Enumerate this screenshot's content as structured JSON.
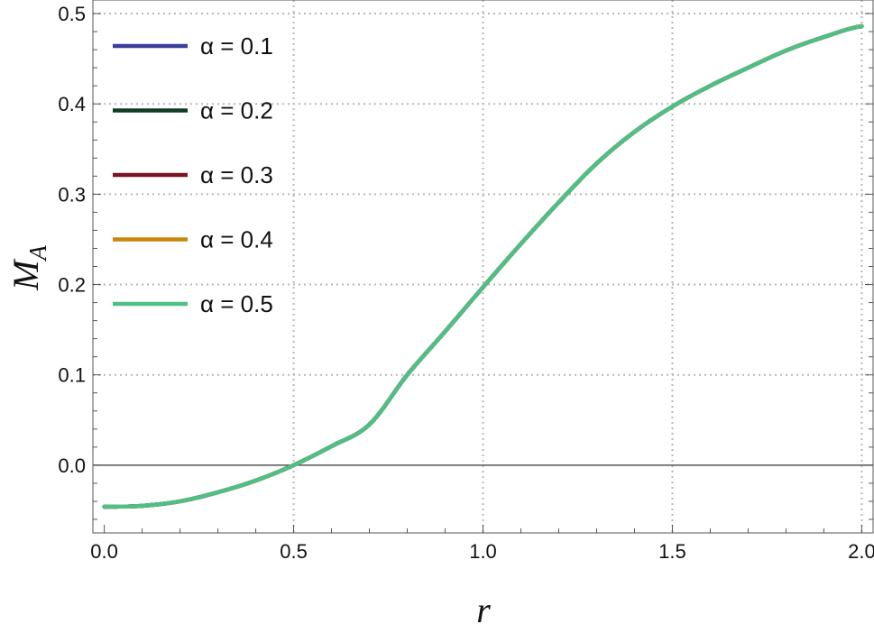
{
  "chart_data": {
    "type": "line",
    "title": "",
    "xlabel": "r",
    "ylabel_main": "M",
    "ylabel_sub": "A",
    "xlim": [
      -0.03,
      2.03
    ],
    "ylim": [
      -0.075,
      0.515
    ],
    "x_ticks": [
      0.0,
      0.5,
      1.0,
      1.5,
      2.0
    ],
    "x_tick_labels": [
      "0.0",
      "0.5",
      "1.0",
      "1.5",
      "2.0"
    ],
    "y_ticks": [
      0.0,
      0.1,
      0.2,
      0.3,
      0.4,
      0.5
    ],
    "y_tick_labels": [
      "0.0",
      "0.1",
      "0.2",
      "0.3",
      "0.4",
      "0.5"
    ],
    "grid": true,
    "legend_position": "top-left",
    "series": [
      {
        "name": "α = 0.1",
        "color": "#3c3f9a"
      },
      {
        "name": "α = 0.2",
        "color": "#0f3a24"
      },
      {
        "name": "α = 0.3",
        "color": "#7a1422"
      },
      {
        "name": "α = 0.4",
        "color": "#c8860e"
      },
      {
        "name": "α = 0.5",
        "color": "#4fbf86"
      }
    ],
    "x": [
      0.0,
      0.1,
      0.2,
      0.3,
      0.4,
      0.5,
      0.6,
      0.7,
      0.8,
      0.9,
      1.0,
      1.1,
      1.2,
      1.3,
      1.4,
      1.5,
      1.6,
      1.7,
      1.8,
      1.9,
      2.0
    ],
    "y": [
      -0.046,
      -0.045,
      -0.04,
      -0.03,
      -0.017,
      0.0,
      0.021,
      0.045,
      0.1,
      0.148,
      0.197,
      0.245,
      0.291,
      0.334,
      0.369,
      0.397,
      0.42,
      0.44,
      0.459,
      0.474,
      0.486
    ]
  }
}
